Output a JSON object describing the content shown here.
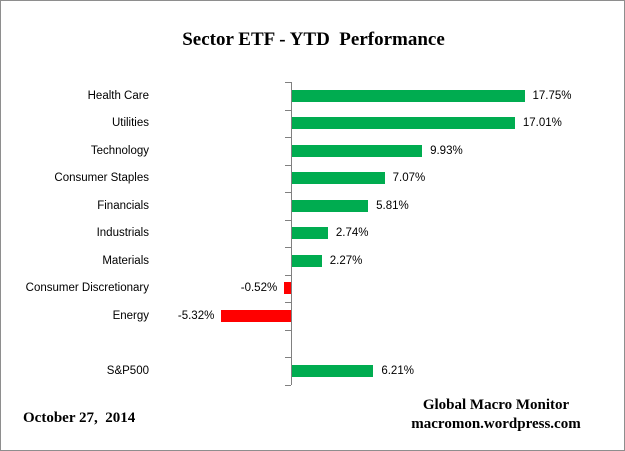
{
  "chart_data": {
    "type": "bar",
    "orientation": "horizontal",
    "title": "Sector ETF - YTD  Performance",
    "categories": [
      "Health Care",
      "Utilities",
      "Technology",
      "Consumer Staples",
      "Financials",
      "Industrials",
      "Materials",
      "Consumer Discretionary",
      "Energy",
      "",
      "S&P500"
    ],
    "values": [
      17.75,
      17.01,
      9.93,
      7.07,
      5.81,
      2.74,
      2.27,
      -0.52,
      -5.32,
      null,
      6.21
    ],
    "value_labels": [
      "17.75%",
      "17.01%",
      "9.93%",
      "7.07%",
      "5.81%",
      "2.74%",
      "2.27%",
      "-0.52%",
      "-5.32%",
      "",
      "6.21%"
    ],
    "xlabel": "",
    "ylabel": "",
    "legend": "none",
    "grid": false,
    "data_labels": true,
    "positive_color": "#00AC50",
    "negative_color": "#FF0000",
    "axis_color": "#808080"
  },
  "footer": {
    "date": "October 27,  2014",
    "credit_line1": "Global Macro Monitor",
    "credit_line2": "macromon.wordpress.com"
  }
}
